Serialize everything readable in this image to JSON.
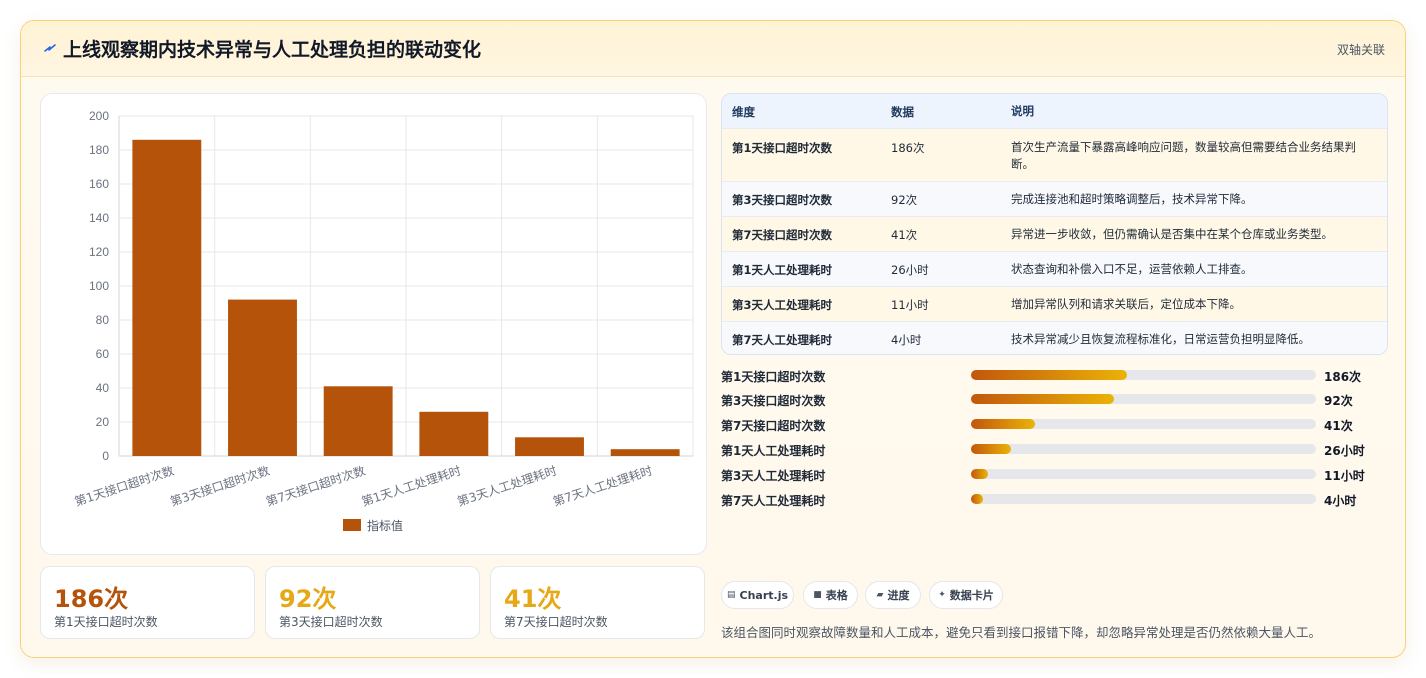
{
  "header": {
    "title": "上线观察期内技术异常与人工处理负担的联动变化",
    "tag": "双轴关联",
    "icon": "lightning-icon"
  },
  "chart_data": {
    "type": "bar",
    "categories": [
      "第1天接口超时次数",
      "第3天接口超时次数",
      "第7天接口超时次数",
      "第1天人工处理耗时",
      "第3天人工处理耗时",
      "第7天人工处理耗时"
    ],
    "series": [
      {
        "name": "指标值",
        "values": [
          186,
          92,
          41,
          26,
          11,
          4
        ],
        "color": "#b45309"
      }
    ],
    "ylim": [
      0,
      200
    ],
    "yticks": [
      0,
      20,
      40,
      60,
      80,
      100,
      120,
      140,
      160,
      180,
      200
    ],
    "grid": true,
    "legend": "bottom"
  },
  "kpis": [
    {
      "value": "186次",
      "label": "第1天接口超时次数",
      "color": "#b45309"
    },
    {
      "value": "92次",
      "label": "第3天接口超时次数",
      "color": "#e6a817"
    },
    {
      "value": "41次",
      "label": "第7天接口超时次数",
      "color": "#e6a817"
    }
  ],
  "table": {
    "headers": [
      "维度",
      "数据",
      "说明"
    ],
    "rows": [
      {
        "dim": "第1天接口超时次数",
        "val": "186次",
        "desc": "首次生产流量下暴露高峰响应问题，数量较高但需要结合业务结果判断。"
      },
      {
        "dim": "第3天接口超时次数",
        "val": "92次",
        "desc": "完成连接池和超时策略调整后，技术异常下降。"
      },
      {
        "dim": "第7天接口超时次数",
        "val": "41次",
        "desc": "异常进一步收敛，但仍需确认是否集中在某个仓库或业务类型。"
      },
      {
        "dim": "第1天人工处理耗时",
        "val": "26小时",
        "desc": "状态查询和补偿入口不足，运营依赖人工排查。"
      },
      {
        "dim": "第3天人工处理耗时",
        "val": "11小时",
        "desc": "增加异常队列和请求关联后，定位成本下降。"
      },
      {
        "dim": "第7天人工处理耗时",
        "val": "4小时",
        "desc": "技术异常减少且恢复流程标准化，日常运营负担明显降低。"
      }
    ]
  },
  "progress": [
    {
      "label": "第1天接口超时次数",
      "value": "186次",
      "fraction": 0.452
    },
    {
      "label": "第3天接口超时次数",
      "value": "92次",
      "fraction": 0.415
    },
    {
      "label": "第7天接口超时次数",
      "value": "41次",
      "fraction": 0.185
    },
    {
      "label": "第1天人工处理耗时",
      "value": "26小时",
      "fraction": 0.117
    },
    {
      "label": "第3天人工处理耗时",
      "value": "11小时",
      "fraction": 0.05
    },
    {
      "label": "第7天人工处理耗时",
      "value": "4小时",
      "fraction": 0.034
    }
  ],
  "chips": [
    {
      "icon": "chart-icon",
      "glyph": "▤",
      "label": "Chart.js"
    },
    {
      "icon": "table-icon",
      "glyph": "■",
      "label": "表格"
    },
    {
      "icon": "progress-icon",
      "glyph": "▰",
      "label": "进度"
    },
    {
      "icon": "sparkle-icon",
      "glyph": "✦",
      "label": "数据卡片"
    }
  ],
  "note": "该组合图同时观察故障数量和人工成本，避免只看到接口报错下降，却忽略异常处理是否仍然依赖大量人工。"
}
